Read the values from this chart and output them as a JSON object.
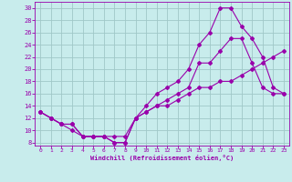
{
  "xlabel": "Windchill (Refroidissement éolien,°C)",
  "bg_color": "#c8ecec",
  "grid_color": "#a0c8c8",
  "line_color": "#9900aa",
  "xlim": [
    -0.5,
    23.5
  ],
  "ylim": [
    7.5,
    31.0
  ],
  "xticks": [
    0,
    1,
    2,
    3,
    4,
    5,
    6,
    7,
    8,
    9,
    10,
    11,
    12,
    13,
    14,
    15,
    16,
    17,
    18,
    19,
    20,
    21,
    22,
    23
  ],
  "yticks": [
    8,
    10,
    12,
    14,
    16,
    18,
    20,
    22,
    24,
    26,
    28,
    30
  ],
  "curve1_x": [
    0,
    1,
    2,
    3,
    4,
    5,
    6,
    7,
    8,
    9,
    10,
    11,
    12,
    13,
    14,
    15,
    16,
    17,
    18,
    19,
    20,
    21,
    22,
    23
  ],
  "curve1_y": [
    13,
    12,
    11,
    11,
    9,
    9,
    9,
    8,
    8,
    12,
    13,
    14,
    15,
    16,
    17,
    21,
    21,
    23,
    25,
    25,
    21,
    17,
    16,
    16
  ],
  "curve2_x": [
    0,
    1,
    2,
    3,
    4,
    5,
    6,
    7,
    8,
    9,
    10,
    11,
    12,
    13,
    14,
    15,
    16,
    17,
    18,
    19,
    20,
    21,
    22,
    23
  ],
  "curve2_y": [
    13,
    12,
    11,
    11,
    9,
    9,
    9,
    9,
    9,
    12,
    13,
    14,
    14,
    15,
    16,
    17,
    17,
    18,
    18,
    19,
    20,
    21,
    22,
    23
  ],
  "curve3_x": [
    0,
    1,
    2,
    3,
    4,
    5,
    6,
    7,
    8,
    9,
    10,
    11,
    12,
    13,
    14,
    15,
    16,
    17,
    18,
    19,
    20,
    21,
    22,
    23
  ],
  "curve3_y": [
    13,
    12,
    11,
    10,
    9,
    9,
    9,
    8,
    8,
    12,
    14,
    16,
    17,
    18,
    20,
    24,
    26,
    30,
    30,
    27,
    25,
    22,
    17,
    16
  ]
}
